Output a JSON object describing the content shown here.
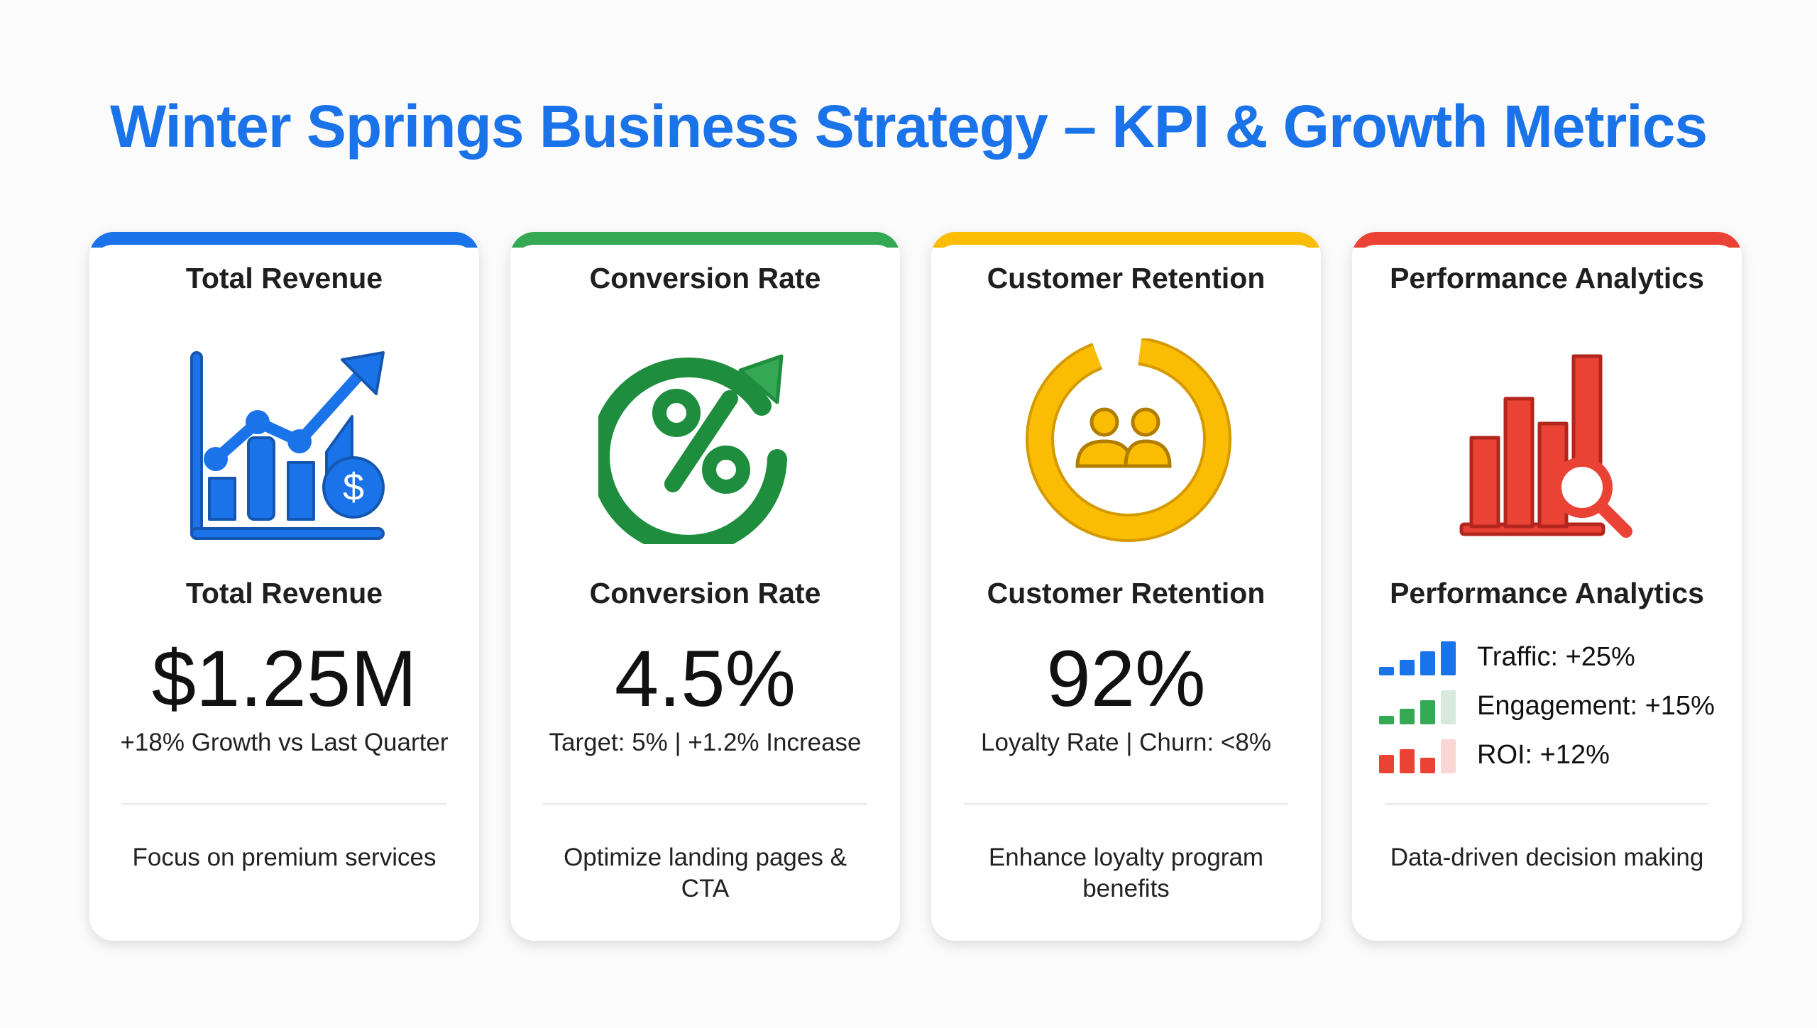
{
  "title": "Winter Springs Business Strategy – KPI & Growth Metrics",
  "colors": {
    "blue": "#1a73e8",
    "green": "#34a853",
    "yellow": "#fbbc04",
    "red": "#ea4335"
  },
  "cards": [
    {
      "header": "Total Revenue",
      "icon": "revenue-chart-dollar-icon",
      "label": "Total Revenue",
      "value": "$1.25M",
      "subtitle": "+18% Growth vs Last Quarter",
      "footer": "Focus on premium services"
    },
    {
      "header": "Conversion Rate",
      "icon": "percent-cycle-icon",
      "label": "Conversion Rate",
      "value": "4.5%",
      "subtitle": "Target: 5% | +1.2% Increase",
      "footer": "Optimize landing pages & CTA"
    },
    {
      "header": "Customer Retention",
      "icon": "users-ring-icon",
      "label": "Customer Retention",
      "value": "92%",
      "subtitle": "Loyalty Rate | Churn: <8%",
      "footer": "Enhance loyalty program benefits"
    },
    {
      "header": "Performance Analytics",
      "icon": "bar-chart-magnifier-icon",
      "label": "Performance Analytics",
      "metrics": [
        {
          "text": "Traffic: +25%",
          "color": "#1a73e8",
          "level": 4
        },
        {
          "text": "Engagement: +15%",
          "color": "#34a853",
          "level": 3
        },
        {
          "text": "ROI: +12%",
          "color": "#ea4335",
          "level": 3
        }
      ],
      "footer": "Data-driven decision making"
    }
  ]
}
